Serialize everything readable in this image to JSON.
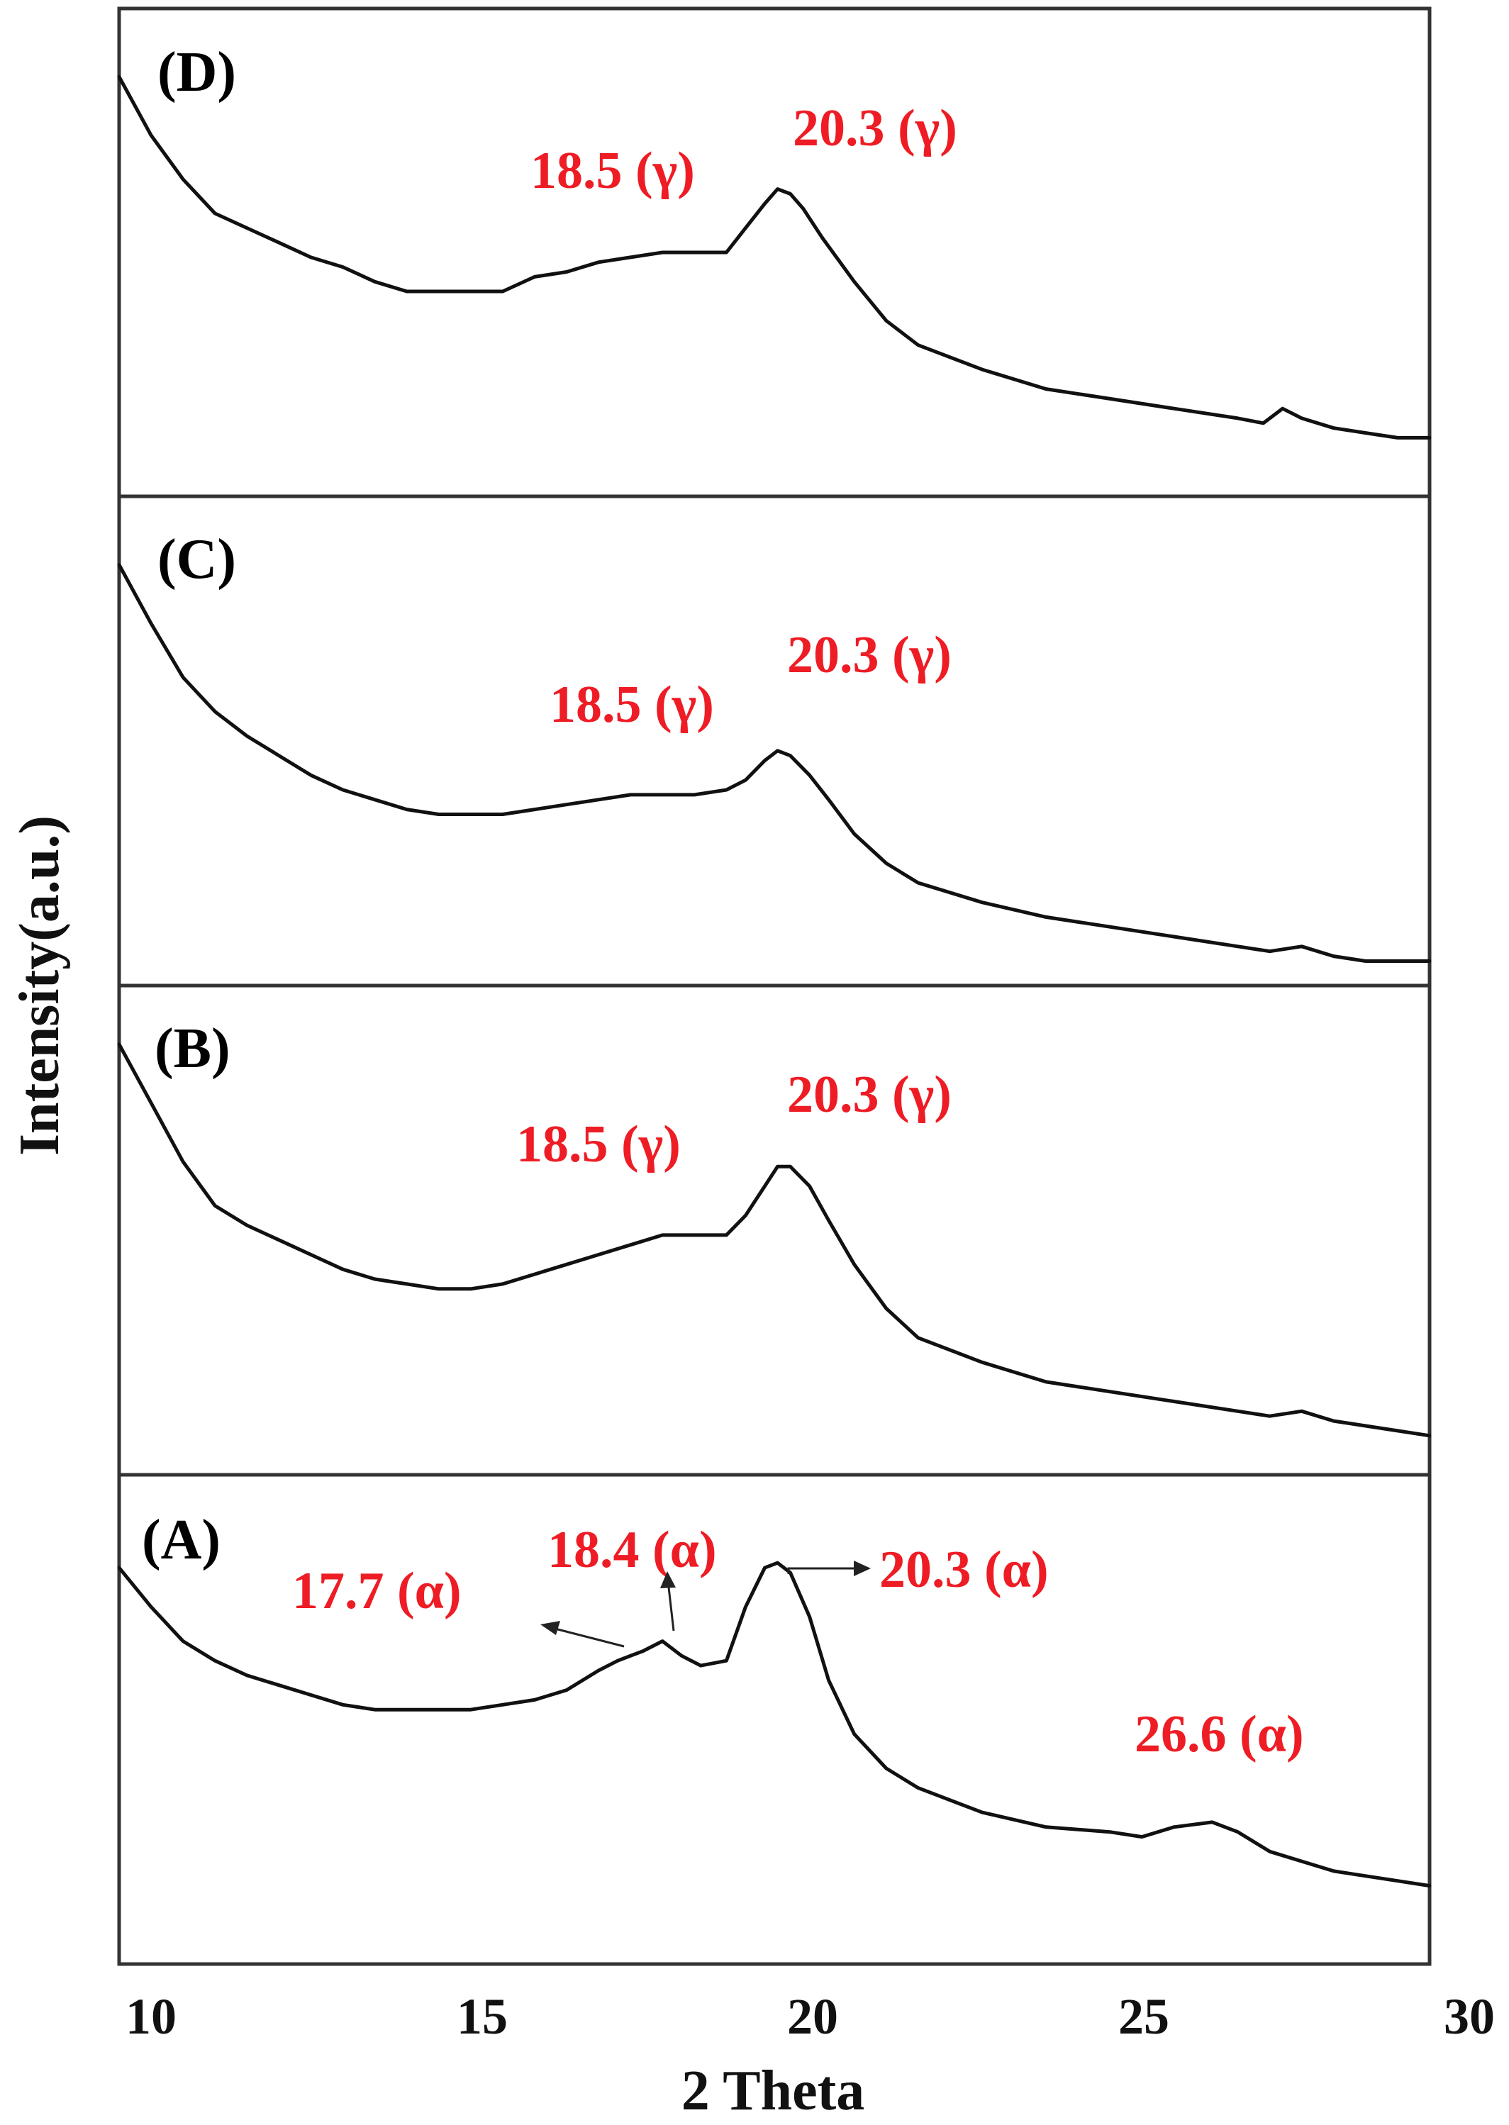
{
  "chart_data": {
    "type": "line",
    "xlabel": "2 Theta",
    "ylabel": "Intensity(a.u.)",
    "xlim": [
      9.5,
      30
    ],
    "x_ticks": [
      "10",
      "15",
      "20",
      "25",
      "30"
    ],
    "x_tick_values": [
      10,
      15,
      20,
      25,
      30
    ],
    "grid": false,
    "colors": {
      "trace": "#111111",
      "annotation": "#ee1c24",
      "frame": "#333333"
    },
    "panels": [
      {
        "label": "(D)",
        "x": [
          9.5,
          10.0,
          10.5,
          11.0,
          11.5,
          12.0,
          12.5,
          13.0,
          13.5,
          14.0,
          14.5,
          15.0,
          15.5,
          16.0,
          16.5,
          17.0,
          17.5,
          18.0,
          18.5,
          19.0,
          19.3,
          19.6,
          19.8,
          20.0,
          20.2,
          20.5,
          21.0,
          21.5,
          22.0,
          23.0,
          24.0,
          25.0,
          26.0,
          27.0,
          27.4,
          27.7,
          28.0,
          28.5,
          29.0,
          29.5,
          30.0
        ],
        "y": [
          0.86,
          0.74,
          0.65,
          0.58,
          0.55,
          0.52,
          0.49,
          0.47,
          0.44,
          0.42,
          0.42,
          0.42,
          0.42,
          0.45,
          0.46,
          0.48,
          0.49,
          0.5,
          0.5,
          0.5,
          0.55,
          0.6,
          0.63,
          0.62,
          0.59,
          0.53,
          0.44,
          0.36,
          0.31,
          0.26,
          0.22,
          0.2,
          0.18,
          0.16,
          0.15,
          0.18,
          0.16,
          0.14,
          0.13,
          0.12,
          0.12
        ],
        "annotations": [
          {
            "text": "18.5 (γ)",
            "x": 18.5
          },
          {
            "text": "20.3 (γ)",
            "x": 20.3
          }
        ]
      },
      {
        "label": "(C)",
        "x": [
          9.5,
          10.0,
          10.5,
          11.0,
          11.5,
          12.0,
          12.5,
          13.0,
          13.5,
          14.0,
          14.5,
          15.0,
          15.5,
          16.0,
          16.5,
          17.0,
          17.5,
          18.0,
          18.5,
          19.0,
          19.3,
          19.6,
          19.8,
          20.0,
          20.3,
          20.6,
          21.0,
          21.5,
          22.0,
          23.0,
          24.0,
          25.0,
          26.0,
          27.0,
          27.5,
          28.0,
          28.5,
          29.0,
          29.5,
          30.0
        ],
        "y": [
          0.86,
          0.74,
          0.63,
          0.56,
          0.51,
          0.47,
          0.43,
          0.4,
          0.38,
          0.36,
          0.35,
          0.35,
          0.35,
          0.36,
          0.37,
          0.38,
          0.39,
          0.39,
          0.39,
          0.4,
          0.42,
          0.46,
          0.48,
          0.47,
          0.43,
          0.38,
          0.31,
          0.25,
          0.21,
          0.17,
          0.14,
          0.12,
          0.1,
          0.08,
          0.07,
          0.08,
          0.06,
          0.05,
          0.05,
          0.05
        ],
        "annotations": [
          {
            "text": "18.5 (γ)",
            "x": 18.5
          },
          {
            "text": "20.3 (γ)",
            "x": 20.3
          }
        ]
      },
      {
        "label": "(B)",
        "x": [
          9.5,
          10.0,
          10.5,
          11.0,
          11.5,
          12.0,
          12.5,
          13.0,
          13.5,
          14.0,
          14.5,
          15.0,
          15.5,
          16.0,
          16.5,
          17.0,
          17.5,
          18.0,
          18.5,
          19.0,
          19.3,
          19.6,
          19.8,
          20.0,
          20.3,
          20.6,
          21.0,
          21.5,
          22.0,
          23.0,
          24.0,
          25.0,
          26.0,
          27.0,
          27.5,
          28.0,
          28.5,
          29.0,
          29.5,
          30.0
        ],
        "y": [
          0.88,
          0.76,
          0.64,
          0.55,
          0.51,
          0.48,
          0.45,
          0.42,
          0.4,
          0.39,
          0.38,
          0.38,
          0.39,
          0.41,
          0.43,
          0.45,
          0.47,
          0.49,
          0.49,
          0.49,
          0.53,
          0.59,
          0.63,
          0.63,
          0.59,
          0.52,
          0.43,
          0.34,
          0.28,
          0.23,
          0.19,
          0.17,
          0.15,
          0.13,
          0.12,
          0.13,
          0.11,
          0.1,
          0.09,
          0.08
        ],
        "annotations": [
          {
            "text": "18.5 (γ)",
            "x": 18.5
          },
          {
            "text": "20.3 (γ)",
            "x": 20.3
          }
        ]
      },
      {
        "label": "(A)",
        "x": [
          9.5,
          10.0,
          10.5,
          11.0,
          11.5,
          12.0,
          12.5,
          13.0,
          13.5,
          14.0,
          14.5,
          15.0,
          15.5,
          16.0,
          16.5,
          17.0,
          17.3,
          17.7,
          18.0,
          18.3,
          18.6,
          19.0,
          19.3,
          19.6,
          19.8,
          20.0,
          20.3,
          20.6,
          21.0,
          21.5,
          22.0,
          23.0,
          24.0,
          25.0,
          25.5,
          26.0,
          26.6,
          27.0,
          27.5,
          28.0,
          28.5,
          29.0,
          29.5,
          30.0
        ],
        "y": [
          0.81,
          0.73,
          0.66,
          0.62,
          0.59,
          0.57,
          0.55,
          0.53,
          0.52,
          0.52,
          0.52,
          0.52,
          0.53,
          0.54,
          0.56,
          0.6,
          0.62,
          0.64,
          0.66,
          0.63,
          0.61,
          0.62,
          0.73,
          0.81,
          0.82,
          0.8,
          0.71,
          0.58,
          0.47,
          0.4,
          0.36,
          0.31,
          0.28,
          0.27,
          0.26,
          0.28,
          0.29,
          0.27,
          0.23,
          0.21,
          0.19,
          0.18,
          0.17,
          0.16
        ],
        "annotations": [
          {
            "text": "17.7 (α)",
            "x": 17.7
          },
          {
            "text": "18.4 (α)",
            "x": 18.4
          },
          {
            "text": "20.3 (α)",
            "x": 20.3
          },
          {
            "text": "26.6 (α)",
            "x": 26.6
          }
        ]
      }
    ]
  }
}
